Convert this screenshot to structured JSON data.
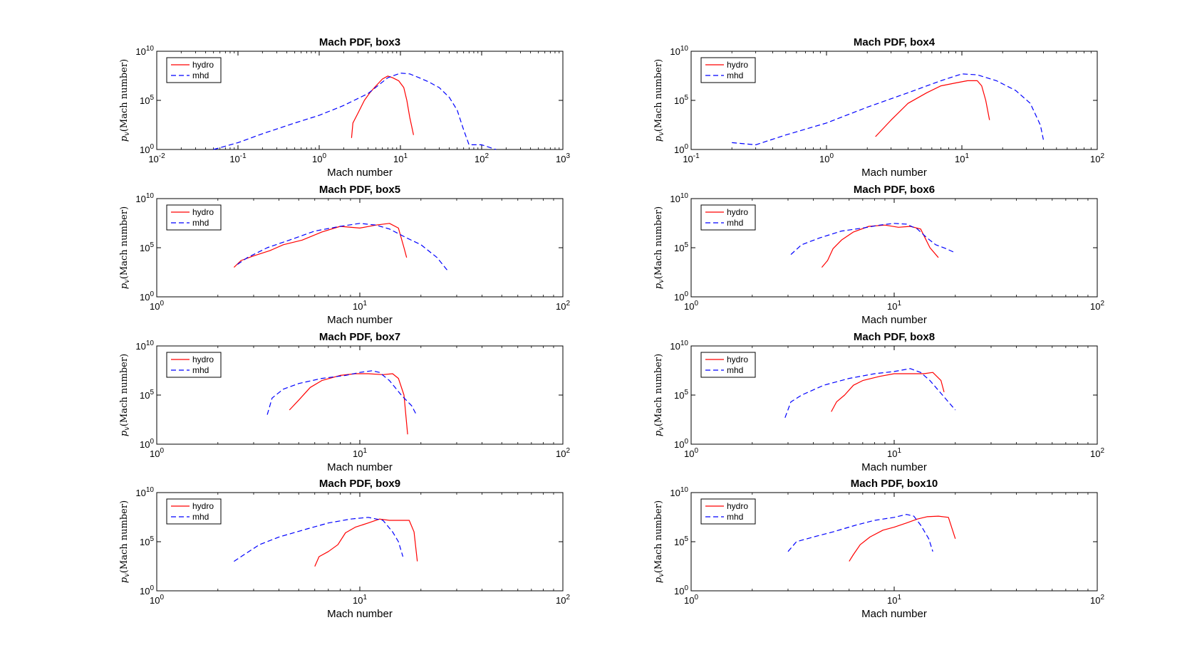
{
  "chart_data": [
    {
      "type": "line",
      "title": "Mach PDF, box3",
      "xlabel": "Mach number",
      "ylabel": "p_v(Mach number)",
      "xscale": "log",
      "yscale": "log",
      "xlim": [
        0.01,
        1000
      ],
      "ylim": [
        1,
        10000000000
      ],
      "xticks": [
        "10^-2",
        "10^-1",
        "10^0",
        "10^1",
        "10^2",
        "10^3"
      ],
      "yticks": [
        "10^0",
        "10^5",
        "10^10"
      ],
      "legend": "top-left",
      "series": [
        {
          "name": "hydro",
          "color": "#ff0000",
          "style": "solid",
          "x": [
            2.5,
            2.6,
            3.0,
            3.6,
            4.2,
            5.0,
            6.0,
            7.0,
            8.0,
            9.5,
            11,
            12,
            13,
            14.5
          ],
          "y": [
            15,
            500,
            5000,
            100000,
            600000,
            3000000,
            15000000,
            30000000,
            20000000,
            10000000,
            2000000,
            100000,
            2000,
            30
          ]
        },
        {
          "name": "mhd",
          "color": "#0000ff",
          "style": "dashed",
          "x": [
            0.05,
            0.1,
            0.2,
            0.5,
            1.0,
            2.0,
            4.0,
            7.0,
            10,
            13,
            17,
            22,
            30,
            40,
            50,
            60,
            70,
            100,
            150
          ],
          "y": [
            1,
            5,
            40,
            500,
            3000,
            30000,
            500000,
            20000000,
            60000000,
            50000000,
            20000000,
            8000000,
            2000000,
            200000,
            10000,
            100,
            3,
            3,
            1
          ]
        }
      ]
    },
    {
      "type": "line",
      "title": "Mach PDF, box4",
      "xlabel": "Mach number",
      "ylabel": "p_v(Mach number)",
      "xscale": "log",
      "yscale": "log",
      "xlim": [
        0.1,
        100
      ],
      "ylim": [
        1,
        10000000000
      ],
      "xticks": [
        "10^-1",
        "10^0",
        "10^1",
        "10^2"
      ],
      "yticks": [
        "10^0",
        "10^5",
        "10^10"
      ],
      "legend": "top-left",
      "series": [
        {
          "name": "hydro",
          "color": "#ff0000",
          "style": "solid",
          "x": [
            2.3,
            3.0,
            4.0,
            5.5,
            7.0,
            9.0,
            11,
            13,
            14,
            15,
            16
          ],
          "y": [
            20,
            1000,
            50000,
            600000,
            3000000,
            6000000,
            10000000,
            10000000,
            3000000,
            100000,
            1000
          ]
        },
        {
          "name": "mhd",
          "color": "#0000ff",
          "style": "dashed",
          "x": [
            0.2,
            0.3,
            0.5,
            1.0,
            2.0,
            4.0,
            7.0,
            10,
            13,
            18,
            25,
            32,
            38,
            40
          ],
          "y": [
            5,
            3,
            30,
            500,
            20000,
            600000,
            10000000,
            50000000,
            40000000,
            10000000,
            1000000,
            50000,
            300,
            10
          ]
        }
      ]
    },
    {
      "type": "line",
      "title": "Mach PDF, box5",
      "xlabel": "Mach number",
      "ylabel": "p_v(Mach number)",
      "xscale": "log",
      "yscale": "log",
      "xlim": [
        1,
        100
      ],
      "ylim": [
        1,
        10000000000
      ],
      "xticks": [
        "10^0",
        "10^1",
        "10^2"
      ],
      "yticks": [
        "10^0",
        "10^5",
        "10^10"
      ],
      "legend": "top-left",
      "series": [
        {
          "name": "hydro",
          "color": "#ff0000",
          "style": "solid",
          "x": [
            2.4,
            2.6,
            3.0,
            3.6,
            4.2,
            5.2,
            6.5,
            8.0,
            10,
            12,
            14,
            15.5,
            16.5,
            17
          ],
          "y": [
            1000,
            5000,
            15000,
            50000,
            200000,
            600000,
            4000000,
            15000000,
            10000000,
            20000000,
            30000000,
            10000000,
            100000,
            10000
          ]
        },
        {
          "name": "mhd",
          "color": "#0000ff",
          "style": "dashed",
          "x": [
            2.5,
            2.8,
            3.5,
            4.5,
            6.0,
            8.0,
            10,
            12,
            14,
            17,
            20,
            24,
            27
          ],
          "y": [
            2000,
            10000,
            100000,
            600000,
            5000000,
            15000000,
            30000000,
            20000000,
            8000000,
            1000000,
            200000,
            10000,
            500
          ]
        }
      ]
    },
    {
      "type": "line",
      "title": "Mach PDF, box6",
      "xlabel": "Mach number",
      "ylabel": "p_v(Mach number)",
      "xscale": "log",
      "yscale": "log",
      "xlim": [
        1,
        100
      ],
      "ylim": [
        1,
        10000000000
      ],
      "xticks": [
        "10^0",
        "10^1",
        "10^2"
      ],
      "yticks": [
        "10^0",
        "10^5",
        "10^10"
      ],
      "legend": "top-left",
      "series": [
        {
          "name": "hydro",
          "color": "#ff0000",
          "style": "solid",
          "x": [
            4.4,
            4.7,
            5.0,
            5.5,
            6.3,
            7.5,
            9.0,
            10.5,
            12,
            13.5,
            15,
            16.5
          ],
          "y": [
            1000,
            5000,
            80000,
            600000,
            4000000,
            15000000,
            20000000,
            12000000,
            15000000,
            8000000,
            100000,
            10000
          ]
        },
        {
          "name": "mhd",
          "color": "#0000ff",
          "style": "dashed",
          "x": [
            3.1,
            3.5,
            4.3,
            5.5,
            7.0,
            8.5,
            10,
            11.5,
            13,
            14.5,
            16,
            18,
            20
          ],
          "y": [
            20000,
            200000,
            1000000,
            5000000,
            10000000,
            20000000,
            30000000,
            25000000,
            8000000,
            1000000,
            200000,
            80000,
            30000
          ]
        }
      ]
    },
    {
      "type": "line",
      "title": "Mach PDF, box7",
      "xlabel": "Mach number",
      "ylabel": "p_v(Mach number)",
      "xscale": "log",
      "yscale": "log",
      "xlim": [
        1,
        100
      ],
      "ylim": [
        1,
        10000000000
      ],
      "xticks": [
        "10^0",
        "10^1",
        "10^2"
      ],
      "yticks": [
        "10^0",
        "10^5",
        "10^10"
      ],
      "legend": "top-left",
      "series": [
        {
          "name": "hydro",
          "color": "#ff0000",
          "style": "solid",
          "x": [
            4.5,
            5.0,
            5.7,
            6.5,
            8.0,
            9.5,
            11,
            13,
            14.5,
            15.5,
            16.5,
            17.2
          ],
          "y": [
            3000,
            30000,
            600000,
            3000000,
            10000000,
            15000000,
            15000000,
            12000000,
            15000000,
            5000000,
            100000,
            10
          ]
        },
        {
          "name": "mhd",
          "color": "#0000ff",
          "style": "dashed",
          "x": [
            3.5,
            3.7,
            4.2,
            5.0,
            6.5,
            8.5,
            10,
            11.5,
            12.5,
            14,
            16,
            18,
            19
          ],
          "y": [
            1000,
            50000,
            400000,
            1500000,
            5000000,
            10000000,
            20000000,
            30000000,
            20000000,
            3000000,
            100000,
            8000,
            1000
          ]
        }
      ]
    },
    {
      "type": "line",
      "title": "Mach PDF, box8",
      "xlabel": "Mach number",
      "ylabel": "p_v(Mach number)",
      "xscale": "log",
      "yscale": "log",
      "xlim": [
        1,
        100
      ],
      "ylim": [
        1,
        10000000000
      ],
      "xticks": [
        "10^0",
        "10^1",
        "10^2"
      ],
      "yticks": [
        "10^0",
        "10^5",
        "10^10"
      ],
      "legend": "top-left",
      "series": [
        {
          "name": "hydro",
          "color": "#ff0000",
          "style": "solid",
          "x": [
            4.9,
            5.2,
            5.7,
            6.3,
            7.0,
            8.5,
            10,
            12,
            14,
            15.5,
            17,
            17.6
          ],
          "y": [
            2000,
            20000,
            100000,
            1000000,
            3000000,
            8000000,
            15000000,
            15000000,
            15000000,
            20000000,
            3000000,
            200000
          ]
        },
        {
          "name": "mhd",
          "color": "#0000ff",
          "style": "dashed",
          "x": [
            2.9,
            3.1,
            3.5,
            4.5,
            6.0,
            8.0,
            10,
            12,
            13.5,
            15,
            17,
            20
          ],
          "y": [
            500,
            20000,
            100000,
            1000000,
            5000000,
            15000000,
            25000000,
            50000000,
            20000000,
            3000000,
            150000,
            3000
          ]
        }
      ]
    },
    {
      "type": "line",
      "title": "Mach PDF, box9",
      "xlabel": "Mach number",
      "ylabel": "p_v(Mach number)",
      "xscale": "log",
      "yscale": "log",
      "xlim": [
        1,
        100
      ],
      "ylim": [
        1,
        10000000000
      ],
      "xticks": [
        "10^0",
        "10^1",
        "10^2"
      ],
      "yticks": [
        "10^0",
        "10^5",
        "10^10"
      ],
      "legend": "top-left",
      "series": [
        {
          "name": "hydro",
          "color": "#ff0000",
          "style": "solid",
          "x": [
            6.0,
            6.3,
            7.0,
            7.8,
            8.5,
            9.5,
            11,
            12.5,
            14,
            16,
            17.5,
            18.5,
            19.2
          ],
          "y": [
            300,
            3000,
            10000,
            50000,
            800000,
            3000000,
            8000000,
            20000000,
            15000000,
            15000000,
            15000000,
            1000000,
            1000
          ]
        },
        {
          "name": "mhd",
          "color": "#0000ff",
          "style": "dashed",
          "x": [
            2.4,
            2.7,
            3.2,
            4.0,
            5.5,
            7.0,
            9.0,
            11,
            13,
            14.5,
            15.5,
            16.3
          ],
          "y": [
            1000,
            5000,
            50000,
            300000,
            2000000,
            8000000,
            20000000,
            30000000,
            15000000,
            1000000,
            100000,
            3000
          ]
        }
      ]
    },
    {
      "type": "line",
      "title": "Mach PDF, box10",
      "xlabel": "Mach number",
      "ylabel": "p_v(Mach number)",
      "xscale": "log",
      "yscale": "log",
      "xlim": [
        1,
        100
      ],
      "ylim": [
        1,
        10000000000
      ],
      "xticks": [
        "10^0",
        "10^1",
        "10^2"
      ],
      "yticks": [
        "10^0",
        "10^5",
        "10^10"
      ],
      "legend": "top-left",
      "series": [
        {
          "name": "hydro",
          "color": "#ff0000",
          "style": "solid",
          "x": [
            6.0,
            6.3,
            6.8,
            7.6,
            8.8,
            10,
            11.5,
            13,
            14.5,
            16.5,
            18.5,
            19.5,
            20
          ],
          "y": [
            1000,
            5000,
            50000,
            300000,
            1500000,
            3000000,
            8000000,
            20000000,
            35000000,
            40000000,
            30000000,
            1000000,
            200000
          ]
        },
        {
          "name": "mhd",
          "color": "#0000ff",
          "style": "dashed",
          "x": [
            3.0,
            3.3,
            4.0,
            5.0,
            6.5,
            8.0,
            10,
            11.5,
            12.5,
            13.5,
            14.8,
            15.5
          ],
          "y": [
            10000,
            100000,
            300000,
            1000000,
            5000000,
            15000000,
            30000000,
            60000000,
            40000000,
            5000000,
            200000,
            10000
          ]
        }
      ]
    }
  ]
}
